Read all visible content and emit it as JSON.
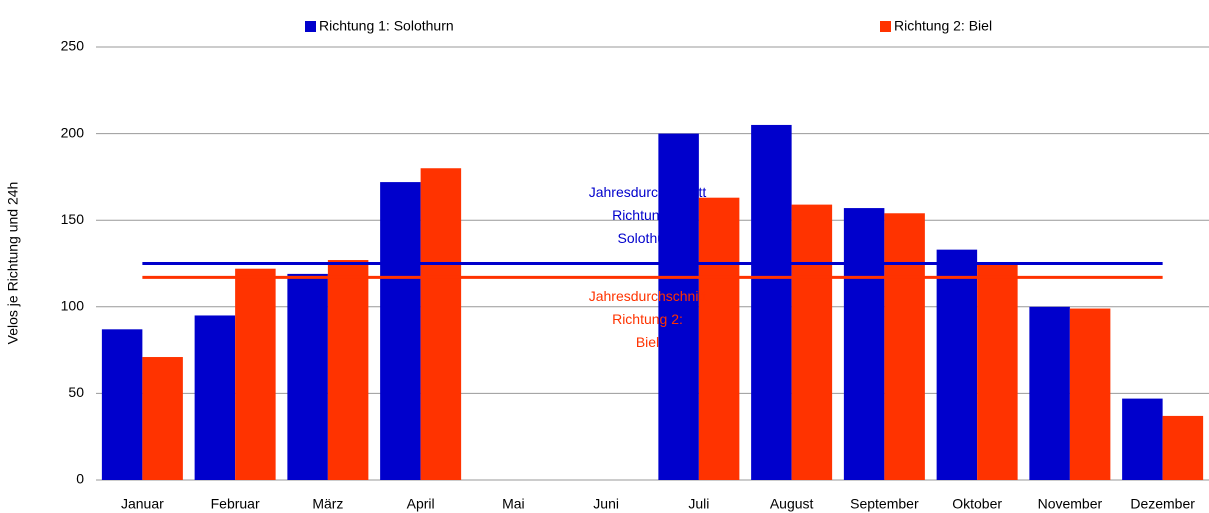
{
  "chart_data": {
    "type": "bar",
    "y_label": "Velos je Richtung und 24h",
    "categories": [
      "Januar",
      "Februar",
      "März",
      "April",
      "Mai",
      "Juni",
      "Juli",
      "August",
      "September",
      "Oktober",
      "November",
      "Dezember"
    ],
    "series": [
      {
        "name": "Richtung 1: Solothurn",
        "color": "#0000cc",
        "values": [
          87,
          95,
          119,
          172,
          null,
          null,
          200,
          205,
          157,
          133,
          100,
          47
        ]
      },
      {
        "name": "Richtung 2: Biel",
        "color": "#ff3300",
        "values": [
          71,
          122,
          127,
          180,
          null,
          null,
          163,
          159,
          154,
          125,
          99,
          37
        ]
      }
    ],
    "averages": [
      {
        "value": 125,
        "color": "#0000cc",
        "label": [
          "Jahresdurchschnitt",
          "Richtung 1:",
          "Solothurn"
        ]
      },
      {
        "value": 117,
        "color": "#ff3300",
        "label": [
          "Jahresdurchschnitt",
          "Richtung 2:",
          "Biel"
        ]
      }
    ],
    "ylim": [
      0,
      250
    ],
    "yticks": [
      0,
      50,
      100,
      150,
      200,
      250
    ],
    "grid": true
  }
}
